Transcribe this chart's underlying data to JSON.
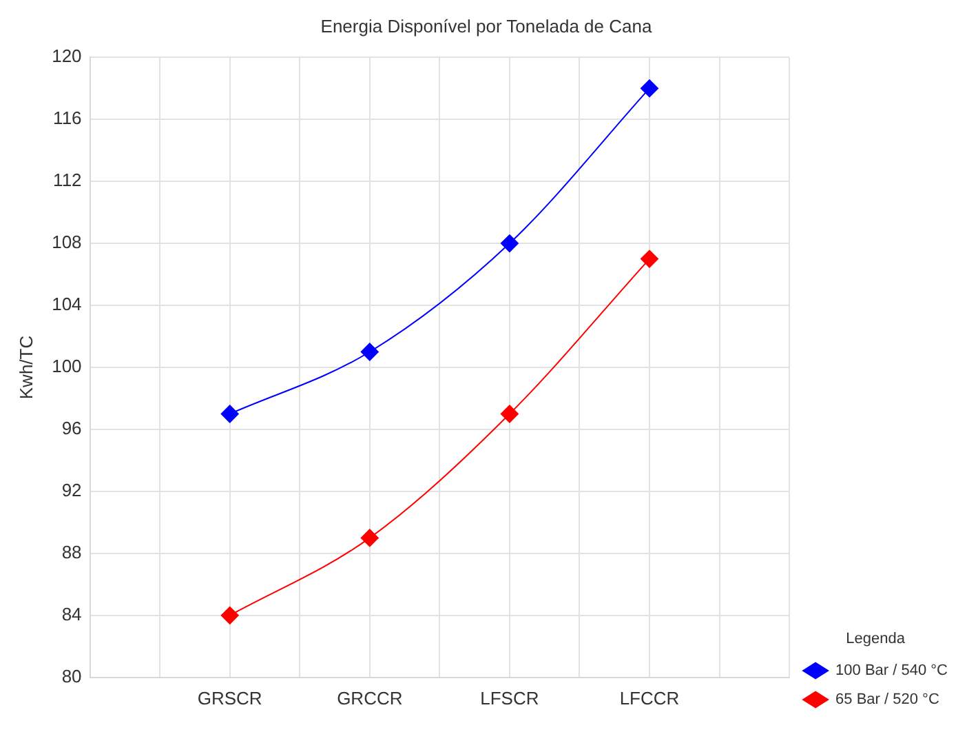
{
  "chart_data": {
    "type": "line",
    "title": "Energia Disponível por Tonelada de Cana",
    "ylabel": "Kwh/TC",
    "legend_title": "Legenda",
    "categories": [
      "GRSCR",
      "GRCCR",
      "LFSCR",
      "LFCCR"
    ],
    "series": [
      {
        "name": "100 Bar / 540 °C",
        "color": "#0000ff",
        "values": [
          97,
          101,
          108,
          118
        ]
      },
      {
        "name": "65 Bar / 520 °C",
        "color": "#ff0000",
        "values": [
          84,
          89,
          97,
          107
        ]
      }
    ],
    "ylim": [
      80,
      120
    ],
    "yticks": [
      80,
      84,
      88,
      92,
      96,
      100,
      104,
      108,
      112,
      116,
      120
    ],
    "grid": true,
    "legend": "bottom right",
    "marker": "diamond",
    "line_style": "solid"
  }
}
